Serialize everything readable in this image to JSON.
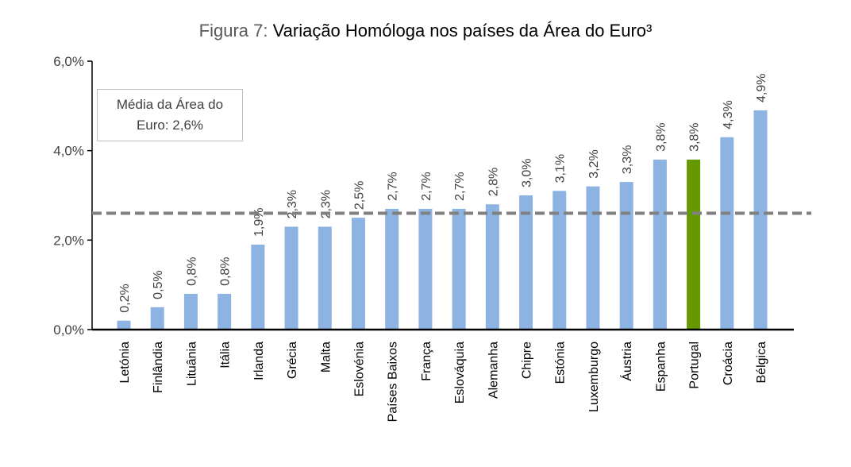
{
  "chart_data": {
    "type": "bar",
    "title_prefix": "Figura 7:",
    "title": "Variação Homóloga nos países da Área do Euro³",
    "categories": [
      "Letónia",
      "Finlândia",
      "Lituânia",
      "Itália",
      "Irlanda",
      "Grécia",
      "Malta",
      "Eslovénia",
      "Países Baixos",
      "França",
      "Eslováquia",
      "Alemanha",
      "Chipre",
      "Estónia",
      "Luxemburgo",
      "Áustria",
      "Espanha",
      "Portugal",
      "Croácia",
      "Bélgica"
    ],
    "values": [
      0.2,
      0.5,
      0.8,
      0.8,
      1.9,
      2.3,
      2.3,
      2.5,
      2.7,
      2.7,
      2.7,
      2.8,
      3.0,
      3.1,
      3.2,
      3.3,
      3.8,
      3.8,
      4.3,
      4.9
    ],
    "value_labels": [
      "0,2%",
      "0,5%",
      "0,8%",
      "0,8%",
      "1,9%",
      "2,3%",
      "2,3%",
      "2,5%",
      "2,7%",
      "2,7%",
      "2,7%",
      "2,8%",
      "3,0%",
      "3,1%",
      "3,2%",
      "3,3%",
      "3,8%",
      "3,8%",
      "4,3%",
      "4,9%"
    ],
    "highlight": "Portugal",
    "colors": {
      "bar": "#8DB3E2",
      "highlight": "#669900",
      "average_line": "#808080"
    },
    "ylim": [
      0,
      6
    ],
    "yticks": [
      0,
      2,
      4,
      6
    ],
    "ytick_labels": [
      "0,0%",
      "2,0%",
      "4,0%",
      "6,0%"
    ],
    "average": 2.6,
    "average_label_line1": "Média da Área do",
    "average_label_line2": "Euro: 2,6%",
    "xlabel": "",
    "ylabel": "",
    "grid": false
  }
}
